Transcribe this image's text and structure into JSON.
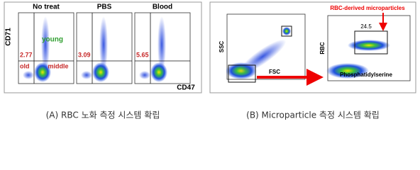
{
  "panel_a": {
    "plots": [
      {
        "title": "No treat",
        "gate_value": "2.77"
      },
      {
        "title": "PBS",
        "gate_value": "3.09"
      },
      {
        "title": "Blood",
        "gate_value": "5.65"
      }
    ],
    "y_axis_label": "CD71",
    "x_axis_label": "CD47",
    "quadrant_labels": {
      "upper": "young",
      "lower_left": "old",
      "lower_right": "middle"
    },
    "caption": "(A) RBC 노화 측정 시스템 확립"
  },
  "panel_b": {
    "left_plot": {
      "y_axis_label": "SSC",
      "x_axis_label": "FSC"
    },
    "right_plot": {
      "y_axis_label": "RBC",
      "x_axis_label": "Phosphatidylserine",
      "gate_value": "24.5",
      "annotation": "RBC-derived microparticles"
    },
    "caption": "(B) Microparticle 측정 시스템 확립"
  }
}
